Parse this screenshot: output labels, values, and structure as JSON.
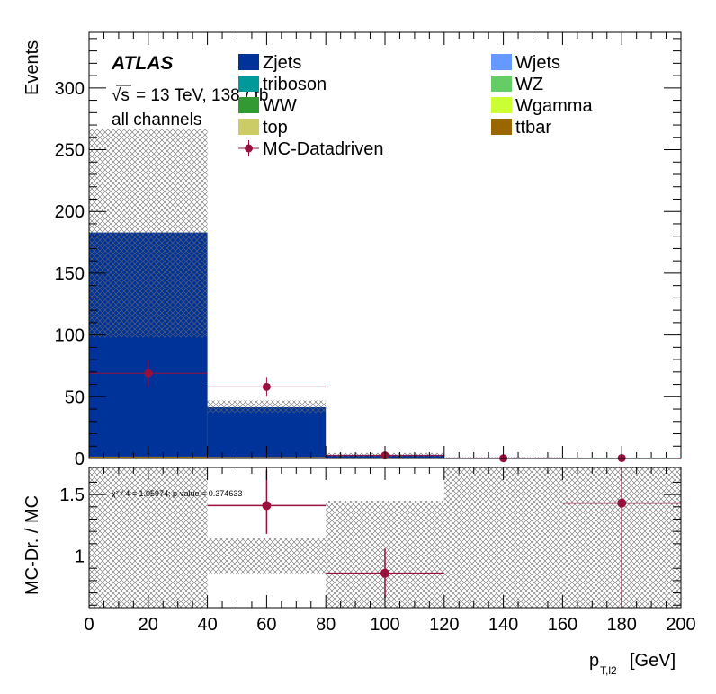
{
  "atlas_label": "ATLAS",
  "energy_label_root": "√s",
  "energy_label_rest": "= 13 TeV, 138 / fb",
  "channel_label": "all channels",
  "chi2_label": "χ² / 4 = 1.05974; p-value = 0.374633",
  "x_unit_label": "p",
  "x_unit_sub": "T,l2",
  "x_unit_suffix": "[GeV]",
  "legend": [
    {
      "name": "Zjets",
      "color": "#003399",
      "kind": "box"
    },
    {
      "name": "Wjets",
      "color": "#6699ff",
      "kind": "box"
    },
    {
      "name": "triboson",
      "color": "#009999",
      "kind": "box"
    },
    {
      "name": "WZ",
      "color": "#66cc66",
      "kind": "box"
    },
    {
      "name": "WW",
      "color": "#339933",
      "kind": "box"
    },
    {
      "name": "Wgamma",
      "color": "#ccff33",
      "kind": "box"
    },
    {
      "name": "top",
      "color": "#cccc66",
      "kind": "box"
    },
    {
      "name": "ttbar",
      "color": "#996600",
      "kind": "box"
    },
    {
      "name": "MC-Datadriven",
      "color": "#99103c",
      "kind": "marker"
    }
  ],
  "chart_data": [
    {
      "type": "bar",
      "subtype": "stacked histogram with uncertainty band",
      "xlabel": "p_T,l2 [GeV]",
      "ylabel": "Events",
      "xlim": [
        0,
        200
      ],
      "ylim": [
        0,
        345
      ],
      "x_ticks": [
        0,
        20,
        40,
        60,
        80,
        100,
        120,
        140,
        160,
        180,
        200
      ],
      "y_ticks": [
        0,
        50,
        100,
        150,
        200,
        250,
        300
      ],
      "bin_edges": [
        0,
        40,
        80,
        120,
        160,
        200
      ],
      "series": [
        {
          "name": "ttbar",
          "color": "#996600",
          "values": [
            1.5,
            1.2,
            0.2,
            0,
            0
          ]
        },
        {
          "name": "Zjets",
          "color": "#003399",
          "values": [
            181.5,
            40.3,
            2.8,
            0.6,
            0.3
          ]
        }
      ],
      "mc_total": [
        183,
        41.5,
        3,
        0.6,
        0.3
      ],
      "mc_unc_band": {
        "low": [
          98,
          37,
          1.5,
          0.2,
          0
        ],
        "high": [
          267,
          47,
          4.5,
          1.2,
          0.6
        ]
      },
      "points": {
        "name": "MC-Datadriven",
        "x": [
          20,
          60,
          100,
          140,
          180
        ],
        "y": [
          69,
          58,
          2.5,
          0.2,
          0.4
        ],
        "xerr": [
          20,
          20,
          20,
          20,
          20
        ],
        "yerr": [
          11,
          8,
          1.5,
          0.5,
          0.6
        ]
      }
    },
    {
      "type": "scatter",
      "subtype": "ratio panel",
      "ylabel": "MC-Dr. / MC",
      "xlim": [
        0,
        200
      ],
      "ylim": [
        0.58,
        1.72
      ],
      "y_ticks": [
        1,
        1.5
      ],
      "reference_line": 1,
      "band": {
        "bin_edges": [
          0,
          40,
          80,
          120,
          160,
          200
        ],
        "low": [
          0.55,
          0.86,
          0.55,
          0.55,
          0.55
        ],
        "high": [
          1.72,
          1.15,
          1.45,
          1.72,
          1.72
        ]
      },
      "points": {
        "x": [
          60,
          100,
          180
        ],
        "y": [
          1.41,
          0.86,
          1.43
        ],
        "xerr": [
          20,
          20,
          20
        ],
        "yerr_low": [
          0.23,
          0.2,
          0.85
        ],
        "yerr_high": [
          0.29,
          0.2,
          0.4
        ]
      }
    }
  ]
}
